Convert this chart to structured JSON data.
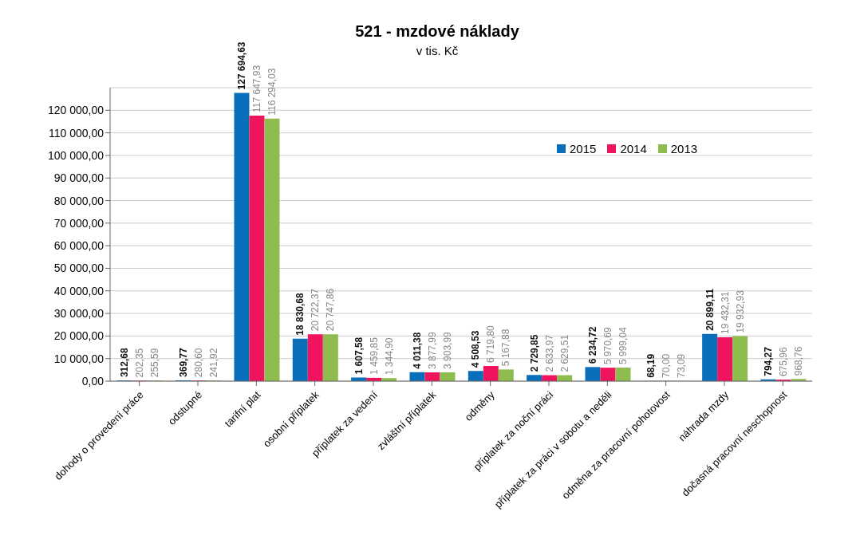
{
  "chart_data": {
    "type": "bar",
    "title": "521 - mzdové náklady",
    "subtitle": "v tis. Kč",
    "categories": [
      "dohody o provedení práce",
      "odstupné",
      "tarifní plat",
      "osobní příplatek",
      "příplatek za vedení",
      "zvláštní příplatek",
      "odměny",
      "příplatek za noční práci",
      "příplatek za práci v sobotu a neděli",
      "odměna za pracovní pohotovost",
      "náhrada mzdy",
      "dočasná pracovní neschopnost"
    ],
    "series": [
      {
        "name": "2015",
        "color": "#0a6fba",
        "values": [
          312.68,
          369.77,
          127694.63,
          18830.68,
          1607.58,
          4011.38,
          4508.53,
          2729.85,
          6234.72,
          68.19,
          20899.11,
          794.27
        ],
        "value_labels": [
          "312,68",
          "369,77",
          "127 694,63",
          "18 830,68",
          "1 607,58",
          "4 011,38",
          "4 508,53",
          "2 729,85",
          "6 234,72",
          "68,19",
          "20 899,11",
          "794,27"
        ]
      },
      {
        "name": "2014",
        "color": "#f0145f",
        "values": [
          202.35,
          280.6,
          117647.93,
          20722.37,
          1459.85,
          3877.99,
          6719.8,
          2633.97,
          5970.69,
          70.0,
          19432.31,
          675.96
        ],
        "value_labels": [
          "202,35",
          "280,60",
          "117 647,93",
          "20 722,37",
          "1 459,85",
          "3 877,99",
          "6 719,80",
          "2 633,97",
          "5 970,69",
          "70,00",
          "19 432,31",
          "675,96"
        ]
      },
      {
        "name": "2013",
        "color": "#8fbc4e",
        "values": [
          255.59,
          241.92,
          116294.03,
          20747.86,
          1344.9,
          3903.99,
          5167.88,
          2629.51,
          5999.04,
          73.09,
          19932.93,
          968.76
        ],
        "value_labels": [
          "255,59",
          "241,92",
          "116 294,03",
          "20 747,86",
          "1 344,90",
          "3 903,99",
          "5 167,88",
          "2 629,51",
          "5 999,04",
          "73,09",
          "19 932,93",
          "968,76"
        ]
      }
    ],
    "ylim": [
      0,
      130000
    ],
    "yticks": [
      {
        "value": 0,
        "label": "0,00"
      },
      {
        "value": 10000,
        "label": "10 000,00"
      },
      {
        "value": 20000,
        "label": "20 000,00"
      },
      {
        "value": 30000,
        "label": "30 000,00"
      },
      {
        "value": 40000,
        "label": "40 000,00"
      },
      {
        "value": 50000,
        "label": "50 000,00"
      },
      {
        "value": 60000,
        "label": "60 000,00"
      },
      {
        "value": 70000,
        "label": "70 000,00"
      },
      {
        "value": 80000,
        "label": "80 000,00"
      },
      {
        "value": 90000,
        "label": "90 000,00"
      },
      {
        "value": 100000,
        "label": "100 000,00"
      },
      {
        "value": 110000,
        "label": "110 000,00"
      },
      {
        "value": 120000,
        "label": "120 000,00"
      }
    ],
    "grid": "y",
    "legend": "top right"
  }
}
